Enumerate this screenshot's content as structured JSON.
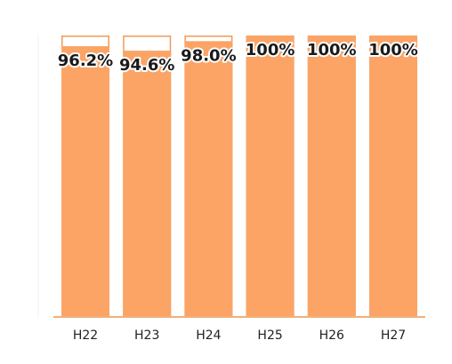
{
  "chart_data": {
    "type": "bar",
    "categories": [
      "H22",
      "H23",
      "H24",
      "H25",
      "H26",
      "H27"
    ],
    "values": [
      96.2,
      94.6,
      98.0,
      100,
      100,
      100
    ],
    "value_labels": [
      "96.2%",
      "94.6%",
      "98.0%",
      "100%",
      "100%",
      "100%"
    ],
    "title": "",
    "xlabel": "",
    "ylabel": "",
    "ylim": [
      0,
      100
    ],
    "grid": false,
    "legend": "none"
  },
  "colors": {
    "bar_fill": "#fba466",
    "bar_outline": "#f29a5a",
    "axis": "#f0b07a",
    "background": "#ffffff"
  }
}
